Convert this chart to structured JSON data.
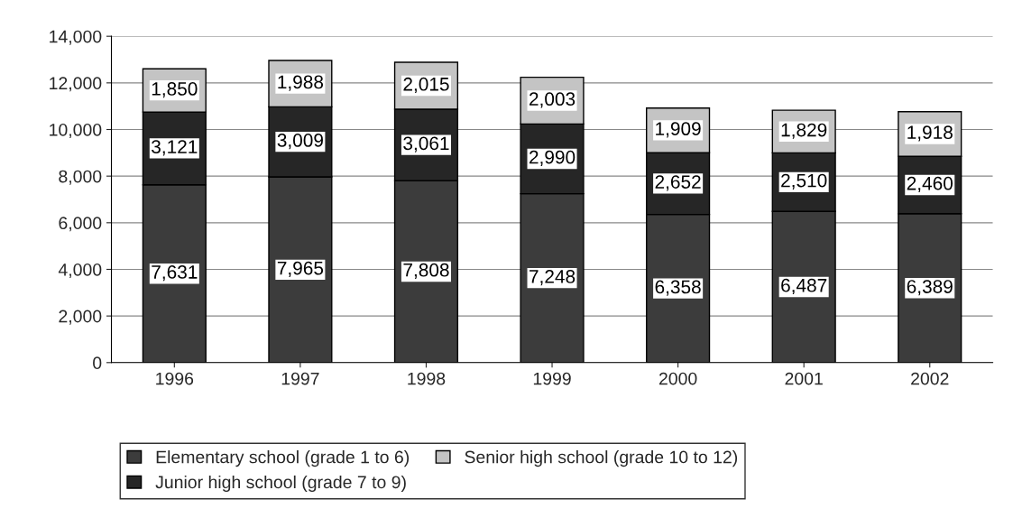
{
  "chart_data": {
    "type": "bar",
    "stacked": true,
    "categories": [
      "1996",
      "1997",
      "1998",
      "1999",
      "2000",
      "2001",
      "2002"
    ],
    "series": [
      {
        "name": "Elementary school (grade 1 to 6)",
        "color": "#3c3c3c",
        "values": [
          7631,
          7965,
          7808,
          7248,
          6358,
          6487,
          6389
        ],
        "value_labels": [
          "7,631",
          "7,965",
          "7,808",
          "7,248",
          "6,358",
          "6,487",
          "6,389"
        ]
      },
      {
        "name": "Junior high school (grade 7 to 9)",
        "color": "#262626",
        "values": [
          3121,
          3009,
          3061,
          2990,
          2652,
          2510,
          2460
        ],
        "value_labels": [
          "3,121",
          "3,009",
          "3,061",
          "2,990",
          "2,652",
          "2,510",
          "2,460"
        ]
      },
      {
        "name": "Senior high school (grade 10 to 12)",
        "color": "#c4c4c4",
        "values": [
          1850,
          1988,
          2015,
          2003,
          1909,
          1829,
          1918
        ],
        "value_labels": [
          "1,850",
          "1,988",
          "2,015",
          "2,003",
          "1,909",
          "1,829",
          "1,918"
        ]
      }
    ],
    "ylim": [
      0,
      14000
    ],
    "yticks": [
      0,
      {
        "value": 2000,
        "label": "2,000"
      },
      {
        "value": 4000,
        "label": "4,000"
      },
      {
        "value": 6000,
        "label": "6,000"
      },
      {
        "value": 8000,
        "label": "8,000"
      },
      {
        "value": 10000,
        "label": "10,000"
      },
      {
        "value": 12000,
        "label": "12,000"
      },
      {
        "value": 14000,
        "label": "14,000"
      }
    ],
    "grid": "y",
    "legend": "bottom"
  }
}
